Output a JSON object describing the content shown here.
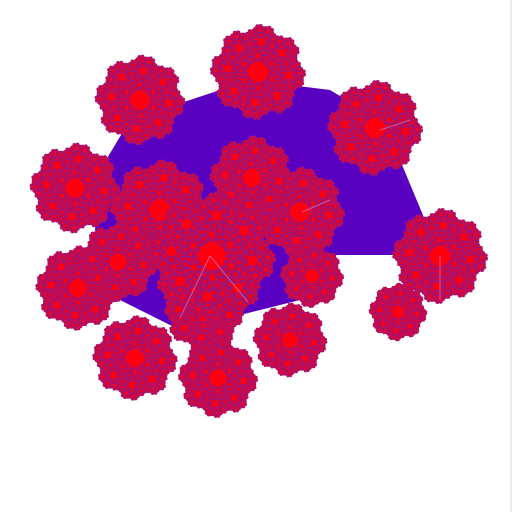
{
  "image": {
    "subject": "fractal-flower-cluster",
    "background_color": "#ffffff",
    "colors": {
      "center": "#ff0010",
      "inner": "#e8002c",
      "mid": "#b0105a",
      "outer": "#7a1aa8",
      "base": "#5a00c0",
      "spoke": "#c090e0"
    },
    "recursion_depth": 3
  }
}
